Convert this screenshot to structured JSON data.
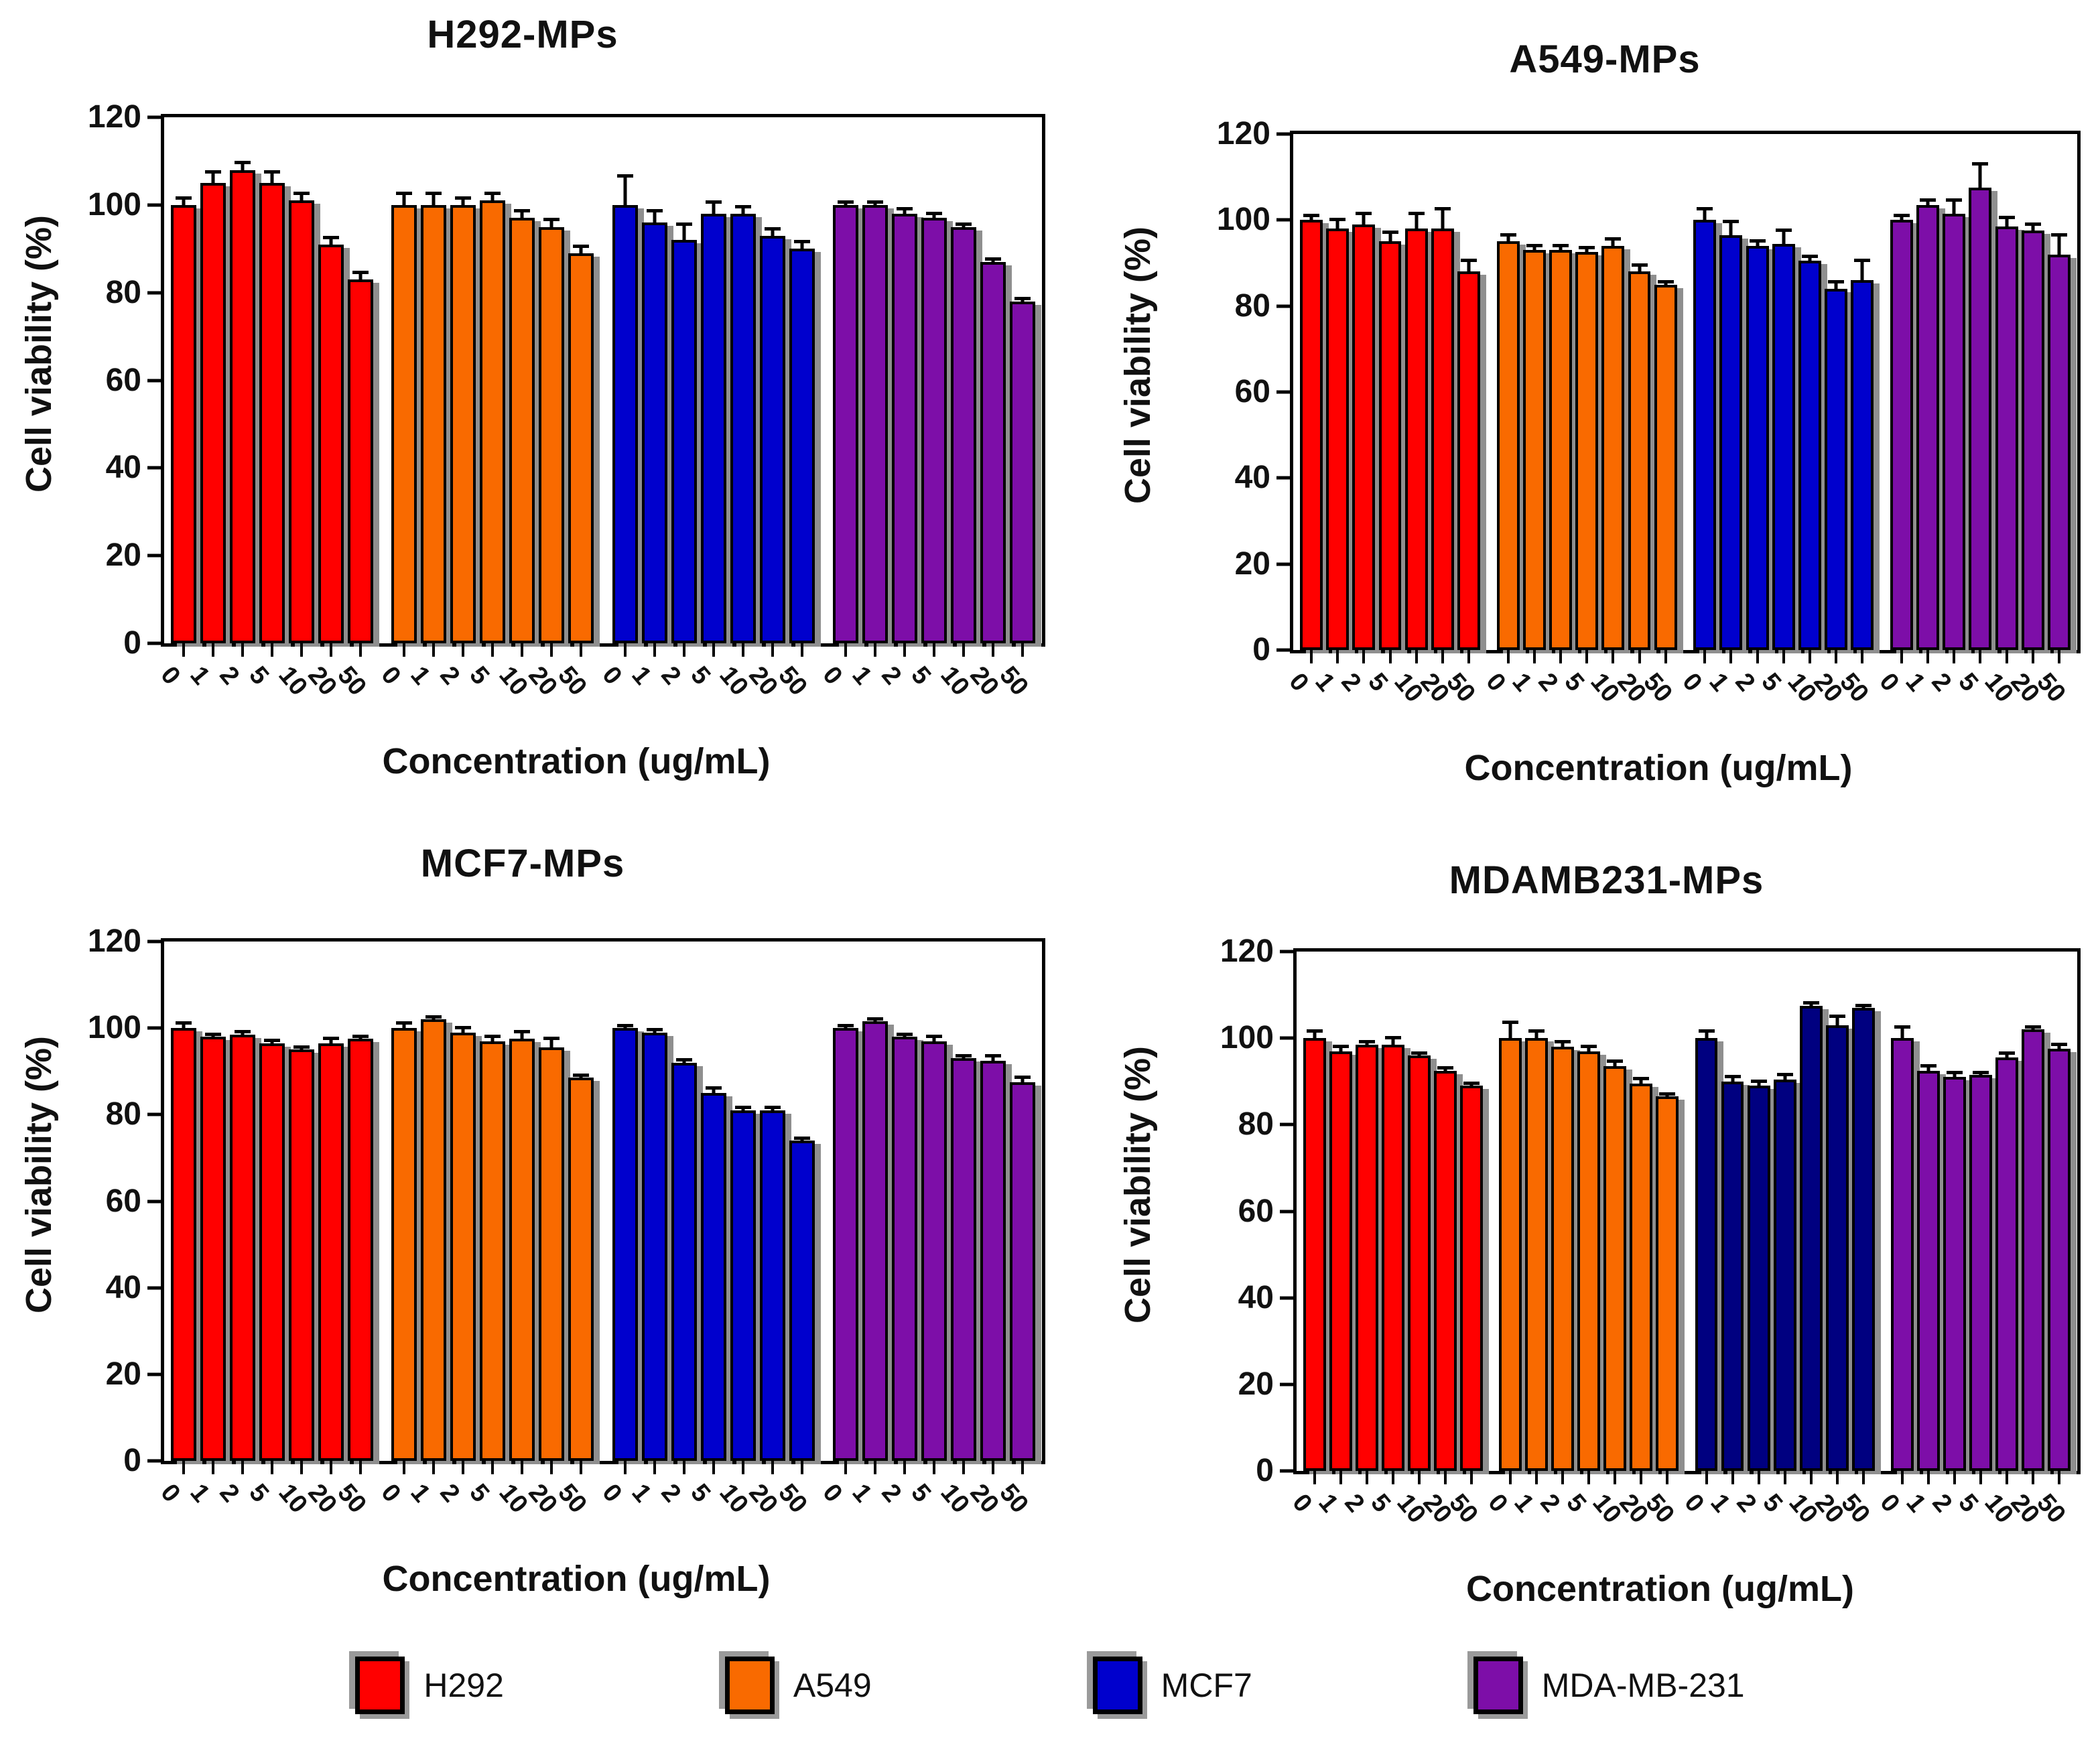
{
  "figure": {
    "y_axis_label": "Cell viability (%)",
    "x_axis_label": "Concentration (ug/mL)"
  },
  "legend": {
    "items": [
      {
        "label": "H292",
        "color": "#FF0000"
      },
      {
        "label": "A549",
        "color": "#F96A00"
      },
      {
        "label": "MCF7",
        "color": "#0000CD"
      },
      {
        "label": "MDA-MB-231",
        "color": "#7D0EA8"
      }
    ]
  },
  "chart_data": [
    {
      "type": "bar",
      "title": "H292-MPs",
      "xlabel": "Concentration (ug/mL)",
      "ylabel": "Cell viability (%)",
      "ylim": [
        0,
        120
      ],
      "yticks": [
        0,
        20,
        40,
        60,
        80,
        100,
        120
      ],
      "grid": false,
      "categories": [
        "0",
        "1",
        "2",
        "5",
        "10",
        "20",
        "50"
      ],
      "series": [
        {
          "name": "H292",
          "color": "#FF0000",
          "values": [
            100,
            105,
            108,
            105,
            101,
            91,
            83
          ],
          "errors": [
            2,
            3,
            2,
            3,
            2,
            2,
            2
          ]
        },
        {
          "name": "A549",
          "color": "#F96A00",
          "values": [
            100,
            100,
            100,
            101,
            97,
            95,
            89
          ],
          "errors": [
            3,
            3,
            2,
            2,
            2,
            2,
            2
          ]
        },
        {
          "name": "MCF7",
          "color": "#0000CD",
          "values": [
            100,
            96,
            92,
            98,
            98,
            93,
            90
          ],
          "errors": [
            7,
            3,
            4,
            3,
            2,
            2,
            2
          ]
        },
        {
          "name": "MDA-MB-231",
          "color": "#7D0EA8",
          "values": [
            100,
            100,
            98,
            97,
            95,
            87,
            78
          ],
          "errors": [
            1,
            1,
            1.5,
            1.5,
            1,
            1,
            1
          ]
        }
      ]
    },
    {
      "type": "bar",
      "title": "A549-MPs",
      "xlabel": "Concentration (ug/mL)",
      "ylabel": "Cell viability (%)",
      "ylim": [
        0,
        120
      ],
      "yticks": [
        0,
        20,
        40,
        60,
        80,
        100,
        120
      ],
      "grid": false,
      "categories": [
        "0",
        "1",
        "2",
        "5",
        "10",
        "20",
        "50"
      ],
      "series": [
        {
          "name": "H292",
          "color": "#FF0000",
          "values": [
            100,
            98,
            99,
            95,
            98,
            98,
            88
          ],
          "errors": [
            1.5,
            2.5,
            3,
            2.5,
            4,
            5,
            3
          ]
        },
        {
          "name": "A549",
          "color": "#F96A00",
          "values": [
            95,
            93,
            93,
            92.5,
            94,
            88,
            85
          ],
          "errors": [
            2,
            1.5,
            1.5,
            1.5,
            2,
            2,
            1
          ]
        },
        {
          "name": "MCF7",
          "color": "#0000CD",
          "values": [
            100,
            96.5,
            94,
            94.5,
            90.5,
            84,
            86
          ],
          "errors": [
            3,
            3.5,
            1.5,
            3.5,
            1.5,
            2,
            5
          ]
        },
        {
          "name": "MDA-MB-231",
          "color": "#7D0EA8",
          "values": [
            100,
            103.5,
            101.5,
            107.5,
            98.5,
            97.5,
            92
          ],
          "errors": [
            1.5,
            1.5,
            3.5,
            6,
            2.5,
            2,
            5
          ]
        }
      ]
    },
    {
      "type": "bar",
      "title": "MCF7-MPs",
      "xlabel": "Concentration (ug/mL)",
      "ylabel": "Cell viability (%)",
      "ylim": [
        0,
        120
      ],
      "yticks": [
        0,
        20,
        40,
        60,
        80,
        100,
        120
      ],
      "grid": false,
      "categories": [
        "0",
        "1",
        "2",
        "5",
        "10",
        "20",
        "50"
      ],
      "series": [
        {
          "name": "H292",
          "color": "#FF0000",
          "values": [
            100,
            98,
            98.5,
            96.5,
            95,
            96.5,
            97.5
          ],
          "errors": [
            1.5,
            1,
            1,
            1,
            1,
            1.5,
            1
          ]
        },
        {
          "name": "A549",
          "color": "#F96A00",
          "values": [
            100,
            102,
            99,
            97,
            97.5,
            95.5,
            88.5
          ],
          "errors": [
            1.5,
            1,
            1.5,
            1.5,
            2,
            2.5,
            1
          ]
        },
        {
          "name": "MCF7",
          "color": "#0000CD",
          "values": [
            100,
            99,
            92,
            85,
            81,
            81,
            74
          ],
          "errors": [
            1,
            1,
            1,
            1.5,
            1,
            1,
            1
          ]
        },
        {
          "name": "MDA-MB-231",
          "color": "#7D0EA8",
          "values": [
            100,
            101.5,
            98,
            97,
            93,
            92.5,
            87.5
          ],
          "errors": [
            1,
            1,
            1,
            1.5,
            1,
            1.5,
            1.5
          ]
        }
      ]
    },
    {
      "type": "bar",
      "title": "MDAMB231-MPs",
      "xlabel": "Concentration (ug/mL)",
      "ylabel": "Cell viability (%)",
      "ylim": [
        0,
        120
      ],
      "yticks": [
        0,
        20,
        40,
        60,
        80,
        100,
        120
      ],
      "grid": false,
      "categories": [
        "0",
        "1",
        "2",
        "5",
        "10",
        "20",
        "50"
      ],
      "series": [
        {
          "name": "H292",
          "color": "#FF0000",
          "values": [
            100,
            97,
            98.5,
            98.5,
            96,
            92.5,
            89
          ],
          "errors": [
            2,
            1.5,
            1,
            2,
            1,
            1,
            1
          ]
        },
        {
          "name": "A549",
          "color": "#F96A00",
          "values": [
            100,
            100,
            98,
            97,
            93.5,
            89.5,
            86.5
          ],
          "errors": [
            4,
            2,
            1.5,
            1.5,
            1.5,
            1.5,
            1
          ]
        },
        {
          "name": "MCF7",
          "color": "#000080",
          "values": [
            100,
            90,
            89,
            90.5,
            107.5,
            103,
            107
          ],
          "errors": [
            2,
            1.5,
            1.5,
            1.5,
            1,
            2.5,
            1
          ]
        },
        {
          "name": "MDA-MB-231",
          "color": "#7D0EA8",
          "values": [
            100,
            92.5,
            91,
            91.5,
            95.5,
            102,
            97.5
          ],
          "errors": [
            3,
            1.5,
            1.5,
            1,
            1.5,
            1,
            1.5
          ]
        }
      ]
    }
  ]
}
